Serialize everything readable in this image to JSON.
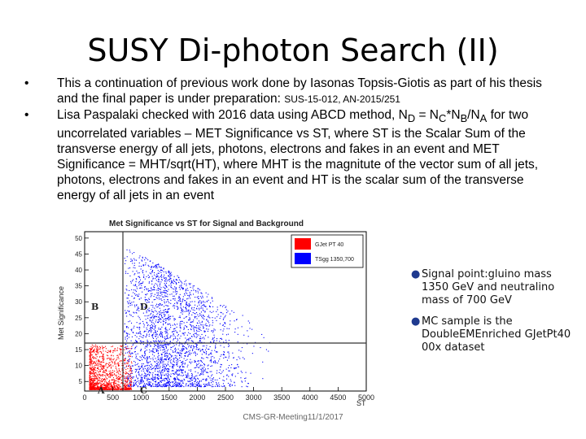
{
  "slide": {
    "title": "SUSY Di-photon Search (II)",
    "bullet1": {
      "part1": "This a continuation of previous work done by Iasonas Topsis-Giotis as part of his thesis and the final paper is under preparation: ",
      "part2": "SUS-15-012, AN-2015/251"
    },
    "bullet2": {
      "p1": "Lisa Paspalaki checked with 2016 data using ABCD method, N",
      "sub_d": "D",
      "p2": " = N",
      "sub_c": "C",
      "p3": "*N",
      "sub_b": "B",
      "p4": "/N",
      "sub_a": "A",
      "p5": " for two uncorrelated variables – MET Significance vs ST, where ST is the Scalar Sum of the transverse energy of all jets, photons, electrons and fakes in an event and MET Significance = MHT/sqrt(HT), where MHT is the magnitute of the vector sum of all jets, photons, electrons and fakes in an event  and HT is the scalar sum of the transverse energy of all jets in an event"
    },
    "notes": [
      "Signal point:gluino mass 1350 GeV and neutralino mass of 700 GeV",
      "MC sample is the DoubleEMEnriched GJetPt40 00x dataset"
    ],
    "footer": "CMS-GR-Meeting11/1/2017"
  },
  "plot": {
    "title": "Met Significance vs ST for Signal and Background",
    "ylabel": "Met Significance",
    "xlabel": "ST",
    "x_ticks": [
      "0",
      "500",
      "1000",
      "1500",
      "2000",
      "2500",
      "3000",
      "3500",
      "4000",
      "4500",
      "5000"
    ],
    "y_ticks": [
      "5",
      "10",
      "15",
      "20",
      "25",
      "30",
      "35",
      "40",
      "45",
      "50"
    ],
    "legend": [
      "GJet PT 40",
      "TSgg 1350,700"
    ],
    "regions": [
      "A",
      "B",
      "C",
      "D"
    ],
    "colors": {
      "background": "#ff0000",
      "signal": "#0000ff",
      "dot": "#1f3a8f"
    }
  }
}
